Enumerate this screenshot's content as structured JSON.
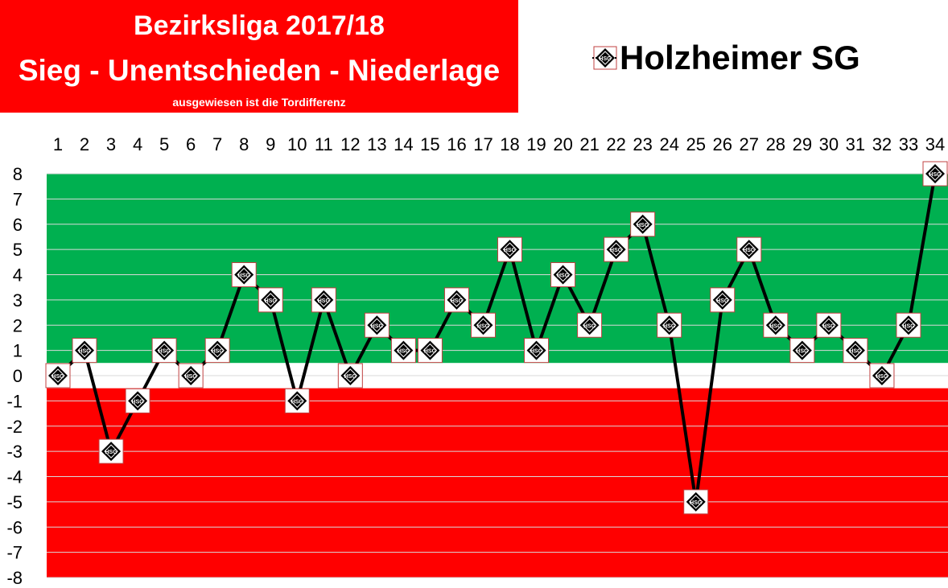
{
  "title": {
    "line1": "Bezirksliga 2017/18",
    "line2": "Sieg - Unentschieden - Niederlage",
    "subtitle": "ausgewiesen ist die Tordifferenz"
  },
  "legend": {
    "label": "Holzheimer SG",
    "icon": "hsg-diamond-marker-icon"
  },
  "colors": {
    "win_band": "#00b050",
    "draw_band": "#ffffff",
    "loss_band": "#ff0000",
    "title_bg": "#ff0000",
    "line": "#000000"
  },
  "chart_data": {
    "type": "line",
    "x": [
      1,
      2,
      3,
      4,
      5,
      6,
      7,
      8,
      9,
      10,
      11,
      12,
      13,
      14,
      15,
      16,
      17,
      18,
      19,
      20,
      21,
      22,
      23,
      24,
      25,
      26,
      27,
      28,
      29,
      30,
      31,
      32,
      33,
      34
    ],
    "series": [
      {
        "name": "Holzheimer SG",
        "values": [
          0,
          1,
          -3,
          -1,
          1,
          0,
          1,
          4,
          3,
          -1,
          3,
          0,
          2,
          1,
          1,
          3,
          2,
          5,
          1,
          4,
          2,
          5,
          6,
          2,
          -5,
          3,
          5,
          2,
          1,
          2,
          1,
          0,
          2,
          8
        ]
      }
    ],
    "ylim": [
      -8,
      8
    ],
    "yticks": [
      8,
      7,
      6,
      5,
      4,
      3,
      2,
      1,
      0,
      -1,
      -2,
      -3,
      -4,
      -5,
      -6,
      -7,
      -8
    ],
    "xaxis_position": "top",
    "bands": [
      {
        "label": "Sieg",
        "from": 0.5,
        "to": 8,
        "color": "#00b050"
      },
      {
        "label": "Unentschieden",
        "from": -0.5,
        "to": 0.5,
        "color": "#ffffff"
      },
      {
        "label": "Niederlage",
        "from": -8,
        "to": -0.5,
        "color": "#ff0000"
      }
    ],
    "grid": true
  }
}
